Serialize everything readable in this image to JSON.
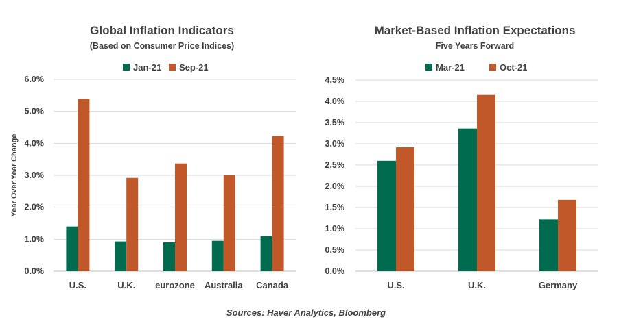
{
  "colors": {
    "series1": "#006b4f",
    "series2": "#c0582a",
    "text": "#404040",
    "grid": "#d9d9d9"
  },
  "chart_data": [
    {
      "type": "bar",
      "title": "Global Inflation Indicators",
      "subtitle": "(Based on Consumer Price Indices)",
      "ylabel": "Year Over Year Change",
      "xlabel": "",
      "categories": [
        "U.S.",
        "U.K.",
        "eurozone",
        "Australia",
        "Canada"
      ],
      "series": [
        {
          "name": "Jan-21",
          "values": [
            1.4,
            0.93,
            0.9,
            0.95,
            1.1
          ]
        },
        {
          "name": "Sep-21",
          "values": [
            5.39,
            2.92,
            3.37,
            3.0,
            4.23
          ]
        }
      ],
      "ylim": [
        0,
        6
      ],
      "yticks": [
        "0.0%",
        "1.0%",
        "2.0%",
        "3.0%",
        "4.0%",
        "5.0%",
        "6.0%"
      ],
      "grid": true,
      "legend": "top-center"
    },
    {
      "type": "bar",
      "title": "Market-Based  Inflation Expectations",
      "subtitle": "Five Years Forward",
      "ylabel": "",
      "xlabel": "",
      "categories": [
        "U.S.",
        "U.K.",
        "Germany"
      ],
      "series": [
        {
          "name": "Mar-21",
          "values": [
            2.6,
            3.36,
            1.22
          ]
        },
        {
          "name": "Oct-21",
          "values": [
            2.92,
            4.15,
            1.68
          ]
        }
      ],
      "ylim": [
        0,
        4.5
      ],
      "yticks": [
        "0.0%",
        "0.5%",
        "1.0%",
        "1.5%",
        "2.0%",
        "2.5%",
        "3.0%",
        "3.5%",
        "4.0%",
        "4.5%"
      ],
      "grid": true,
      "legend": "top-center"
    }
  ],
  "source_note": "Sources: Haver Analytics, Bloomberg"
}
